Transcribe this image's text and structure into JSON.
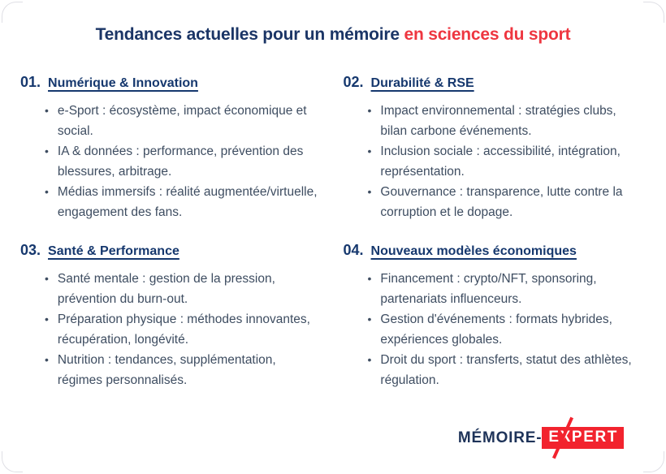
{
  "page": {
    "title_primary": "Tendances actuelles pour un mémoire",
    "title_accent": "en sciences du sport"
  },
  "ui": {
    "bullet_char": "•"
  },
  "colors": {
    "title_navy": "#1b3566",
    "heading_navy": "#16386e",
    "body_slate": "#3e4d61",
    "accent_red": "#ee3640",
    "logo_red": "#f2232e",
    "corner_border": "#dfdfe5"
  },
  "sections": [
    {
      "number": "01.",
      "title": "Numérique & Innovation",
      "bullets": [
        "e-Sport : écosystème, impact économique et social.",
        "IA & données : performance, prévention des blessures, arbitrage.",
        "Médias immersifs : réalité augmentée/virtuelle, engagement des fans."
      ]
    },
    {
      "number": "02.",
      "title": "Durabilité & RSE",
      "bullets": [
        "Impact environnemental : stratégies clubs, bilan carbone événements.",
        "Inclusion sociale : accessibilité, intégration, représentation.",
        "Gouvernance : transparence, lutte contre la corruption et le dopage."
      ]
    },
    {
      "number": "03.",
      "title": "Santé & Performance",
      "bullets": [
        "Santé mentale : gestion de la pression, prévention du burn-out.",
        "Préparation physique : méthodes innovantes, récupération, longévité.",
        "Nutrition : tendances, supplémentation, régimes personnalisés."
      ]
    },
    {
      "number": "04.",
      "title": "Nouveaux modèles économiques",
      "bullets": [
        "Financement : crypto/NFT, sponsoring, partenariats influenceurs.",
        "Gestion d'événements : formats hybrides, expériences globales.",
        "Droit du sport : transferts, statut des athlètes, régulation."
      ]
    }
  ],
  "logo": {
    "left": "MÉMOIRE-",
    "right": "EXPERT"
  }
}
